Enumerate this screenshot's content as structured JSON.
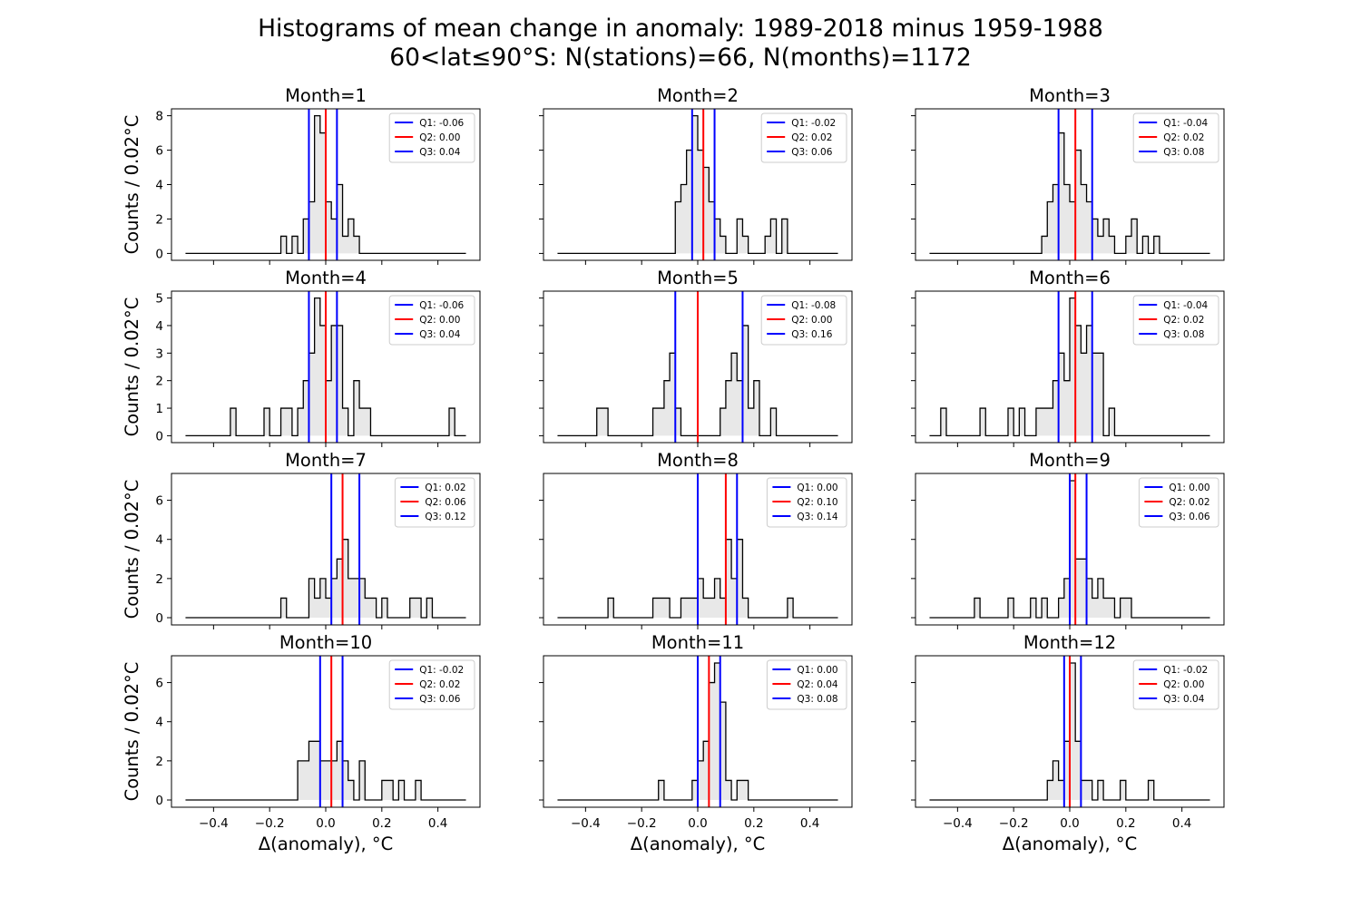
{
  "title": "Histograms of mean change in anomaly: 1989-2018 minus 1959-1988",
  "subtitle": "60<lat≤90°S: N(stations)=66, N(months)=1172",
  "colors": {
    "q_outer": "#0000ff",
    "q_median": "#ff0000",
    "hist_fill": "#e8e8e8",
    "hist_edge": "#000000"
  },
  "chart_data": [
    {
      "type": "histogram",
      "title": "Month=1",
      "xlim": [
        -0.55,
        0.55
      ],
      "ylim": [
        -0.4,
        8.4
      ],
      "yticks": [
        0,
        2,
        4,
        6,
        8
      ],
      "ylabel": "Counts / 0.02°C",
      "xlabel": "",
      "bin_width": 0.02,
      "x_start": -0.5,
      "bars": [
        [
          -0.16,
          1
        ],
        [
          -0.12,
          1
        ],
        [
          -0.08,
          2
        ],
        [
          -0.06,
          3
        ],
        [
          -0.04,
          8
        ],
        [
          -0.02,
          7
        ],
        [
          0.0,
          3
        ],
        [
          0.02,
          2
        ],
        [
          0.04,
          4
        ],
        [
          0.06,
          1
        ],
        [
          0.08,
          2
        ],
        [
          0.1,
          1
        ]
      ],
      "quartiles": [
        {
          "name": "Q1",
          "value": -0.06,
          "label": "Q1: -0.06"
        },
        {
          "name": "Q2",
          "value": 0.0,
          "label": "Q2: 0.00"
        },
        {
          "name": "Q3",
          "value": 0.04,
          "label": "Q3: 0.04"
        }
      ]
    },
    {
      "type": "histogram",
      "title": "Month=2",
      "xlim": [
        -0.55,
        0.55
      ],
      "ylim": [
        -0.4,
        8.4
      ],
      "yticks": [
        0,
        2,
        4,
        6,
        8
      ],
      "ylabel": "",
      "xlabel": "",
      "bin_width": 0.02,
      "x_start": -0.5,
      "bars": [
        [
          -0.08,
          3
        ],
        [
          -0.06,
          4
        ],
        [
          -0.04,
          6
        ],
        [
          -0.02,
          8
        ],
        [
          0.0,
          6
        ],
        [
          0.02,
          5
        ],
        [
          0.04,
          3
        ],
        [
          0.06,
          2
        ],
        [
          0.08,
          1
        ],
        [
          0.14,
          2
        ],
        [
          0.16,
          1
        ],
        [
          0.24,
          1
        ],
        [
          0.26,
          2
        ],
        [
          0.3,
          2
        ]
      ],
      "quartiles": [
        {
          "name": "Q1",
          "value": -0.02,
          "label": "Q1: -0.02"
        },
        {
          "name": "Q2",
          "value": 0.02,
          "label": "Q2: 0.02"
        },
        {
          "name": "Q3",
          "value": 0.06,
          "label": "Q3: 0.06"
        }
      ]
    },
    {
      "type": "histogram",
      "title": "Month=3",
      "xlim": [
        -0.55,
        0.55
      ],
      "ylim": [
        -0.4,
        8.4
      ],
      "yticks": [
        0,
        2,
        4,
        6,
        8
      ],
      "ylabel": "",
      "xlabel": "",
      "bin_width": 0.02,
      "x_start": -0.5,
      "bars": [
        [
          -0.1,
          1
        ],
        [
          -0.08,
          3
        ],
        [
          -0.06,
          4
        ],
        [
          -0.04,
          7
        ],
        [
          -0.02,
          4
        ],
        [
          0.0,
          3
        ],
        [
          0.02,
          6
        ],
        [
          0.04,
          4
        ],
        [
          0.06,
          3
        ],
        [
          0.08,
          2
        ],
        [
          0.1,
          1
        ],
        [
          0.12,
          2
        ],
        [
          0.14,
          1
        ],
        [
          0.2,
          1
        ],
        [
          0.22,
          2
        ],
        [
          0.26,
          1
        ],
        [
          0.3,
          1
        ]
      ],
      "quartiles": [
        {
          "name": "Q1",
          "value": -0.04,
          "label": "Q1: -0.04"
        },
        {
          "name": "Q2",
          "value": 0.02,
          "label": "Q2: 0.02"
        },
        {
          "name": "Q3",
          "value": 0.08,
          "label": "Q3: 0.08"
        }
      ]
    },
    {
      "type": "histogram",
      "title": "Month=4",
      "xlim": [
        -0.55,
        0.55
      ],
      "ylim": [
        -0.25,
        5.25
      ],
      "yticks": [
        0,
        1,
        2,
        3,
        4,
        5
      ],
      "ylabel": "Counts / 0.02°C",
      "xlabel": "",
      "bin_width": 0.02,
      "x_start": -0.5,
      "bars": [
        [
          -0.34,
          1
        ],
        [
          -0.22,
          1
        ],
        [
          -0.16,
          1
        ],
        [
          -0.14,
          1
        ],
        [
          -0.1,
          1
        ],
        [
          -0.08,
          2
        ],
        [
          -0.06,
          3
        ],
        [
          -0.04,
          5
        ],
        [
          -0.02,
          4
        ],
        [
          0.0,
          2
        ],
        [
          0.02,
          4
        ],
        [
          0.04,
          4
        ],
        [
          0.06,
          1
        ],
        [
          0.1,
          2
        ],
        [
          0.12,
          1
        ],
        [
          0.14,
          1
        ],
        [
          0.44,
          1
        ]
      ],
      "quartiles": [
        {
          "name": "Q1",
          "value": -0.06,
          "label": "Q1: -0.06"
        },
        {
          "name": "Q2",
          "value": 0.0,
          "label": "Q2: 0.00"
        },
        {
          "name": "Q3",
          "value": 0.04,
          "label": "Q3: 0.04"
        }
      ]
    },
    {
      "type": "histogram",
      "title": "Month=5",
      "xlim": [
        -0.55,
        0.55
      ],
      "ylim": [
        -0.25,
        5.25
      ],
      "yticks": [
        0,
        1,
        2,
        3,
        4,
        5
      ],
      "ylabel": "",
      "xlabel": "",
      "bin_width": 0.02,
      "x_start": -0.5,
      "bars": [
        [
          -0.36,
          1
        ],
        [
          -0.34,
          1
        ],
        [
          -0.16,
          1
        ],
        [
          -0.14,
          1
        ],
        [
          -0.12,
          2
        ],
        [
          -0.1,
          3
        ],
        [
          -0.08,
          1
        ],
        [
          0.08,
          1
        ],
        [
          0.1,
          2
        ],
        [
          0.12,
          3
        ],
        [
          0.14,
          2
        ],
        [
          0.16,
          4
        ],
        [
          0.18,
          1
        ],
        [
          0.2,
          2
        ],
        [
          0.26,
          1
        ]
      ],
      "quartiles": [
        {
          "name": "Q1",
          "value": -0.08,
          "label": "Q1: -0.08"
        },
        {
          "name": "Q2",
          "value": 0.0,
          "label": "Q2: 0.00"
        },
        {
          "name": "Q3",
          "value": 0.16,
          "label": "Q3: 0.16"
        }
      ]
    },
    {
      "type": "histogram",
      "title": "Month=6",
      "xlim": [
        -0.55,
        0.55
      ],
      "ylim": [
        -0.25,
        5.25
      ],
      "yticks": [
        0,
        1,
        2,
        3,
        4,
        5
      ],
      "ylabel": "",
      "xlabel": "",
      "bin_width": 0.02,
      "x_start": -0.5,
      "bars": [
        [
          -0.46,
          1
        ],
        [
          -0.32,
          1
        ],
        [
          -0.22,
          1
        ],
        [
          -0.18,
          1
        ],
        [
          -0.12,
          1
        ],
        [
          -0.1,
          1
        ],
        [
          -0.08,
          1
        ],
        [
          -0.06,
          2
        ],
        [
          -0.04,
          3
        ],
        [
          -0.02,
          2
        ],
        [
          0.0,
          5
        ],
        [
          0.02,
          4
        ],
        [
          0.04,
          3
        ],
        [
          0.06,
          4
        ],
        [
          0.08,
          3
        ],
        [
          0.1,
          3
        ],
        [
          0.14,
          1
        ]
      ],
      "quartiles": [
        {
          "name": "Q1",
          "value": -0.04,
          "label": "Q1: -0.04"
        },
        {
          "name": "Q2",
          "value": 0.02,
          "label": "Q2: 0.02"
        },
        {
          "name": "Q3",
          "value": 0.08,
          "label": "Q3: 0.08"
        }
      ]
    },
    {
      "type": "histogram",
      "title": "Month=7",
      "xlim": [
        -0.55,
        0.55
      ],
      "ylim": [
        -0.37,
        7.37
      ],
      "yticks": [
        0,
        2,
        4,
        6
      ],
      "ylabel": "Counts / 0.02°C",
      "xlabel": "",
      "bin_width": 0.02,
      "x_start": -0.5,
      "bars": [
        [
          -0.16,
          1
        ],
        [
          -0.06,
          2
        ],
        [
          -0.04,
          1
        ],
        [
          -0.02,
          2
        ],
        [
          0.0,
          1
        ],
        [
          0.02,
          2
        ],
        [
          0.04,
          3
        ],
        [
          0.06,
          4
        ],
        [
          0.08,
          2
        ],
        [
          0.1,
          2
        ],
        [
          0.12,
          2
        ],
        [
          0.14,
          1
        ],
        [
          0.16,
          1
        ],
        [
          0.2,
          1
        ],
        [
          0.3,
          1
        ],
        [
          0.32,
          1
        ],
        [
          0.36,
          1
        ]
      ],
      "quartiles": [
        {
          "name": "Q1",
          "value": 0.02,
          "label": "Q1: 0.02"
        },
        {
          "name": "Q2",
          "value": 0.06,
          "label": "Q2: 0.06"
        },
        {
          "name": "Q3",
          "value": 0.12,
          "label": "Q3: 0.12"
        }
      ]
    },
    {
      "type": "histogram",
      "title": "Month=8",
      "xlim": [
        -0.55,
        0.55
      ],
      "ylim": [
        -0.37,
        7.37
      ],
      "yticks": [
        0,
        2,
        4,
        6
      ],
      "ylabel": "",
      "xlabel": "",
      "bin_width": 0.02,
      "x_start": -0.5,
      "bars": [
        [
          -0.32,
          1
        ],
        [
          -0.16,
          1
        ],
        [
          -0.14,
          1
        ],
        [
          -0.12,
          1
        ],
        [
          -0.06,
          1
        ],
        [
          -0.04,
          1
        ],
        [
          -0.02,
          1
        ],
        [
          0.0,
          2
        ],
        [
          0.02,
          1
        ],
        [
          0.04,
          1
        ],
        [
          0.06,
          2
        ],
        [
          0.08,
          1
        ],
        [
          0.1,
          4
        ],
        [
          0.12,
          2
        ],
        [
          0.14,
          4
        ],
        [
          0.16,
          1
        ],
        [
          0.32,
          1
        ]
      ],
      "quartiles": [
        {
          "name": "Q1",
          "value": 0.0,
          "label": "Q1: 0.00"
        },
        {
          "name": "Q2",
          "value": 0.1,
          "label": "Q2: 0.10"
        },
        {
          "name": "Q3",
          "value": 0.14,
          "label": "Q3: 0.14"
        }
      ]
    },
    {
      "type": "histogram",
      "title": "Month=9",
      "xlim": [
        -0.55,
        0.55
      ],
      "ylim": [
        -0.37,
        7.37
      ],
      "yticks": [
        0,
        2,
        4,
        6
      ],
      "ylabel": "",
      "xlabel": "",
      "bin_width": 0.02,
      "x_start": -0.5,
      "bars": [
        [
          -0.34,
          1
        ],
        [
          -0.22,
          1
        ],
        [
          -0.14,
          1
        ],
        [
          -0.1,
          1
        ],
        [
          -0.04,
          1
        ],
        [
          -0.02,
          2
        ],
        [
          0.0,
          7
        ],
        [
          0.02,
          3
        ],
        [
          0.04,
          3
        ],
        [
          0.06,
          2
        ],
        [
          0.08,
          1
        ],
        [
          0.1,
          2
        ],
        [
          0.12,
          1
        ],
        [
          0.14,
          1
        ],
        [
          0.18,
          1
        ],
        [
          0.2,
          1
        ]
      ],
      "quartiles": [
        {
          "name": "Q1",
          "value": 0.0,
          "label": "Q1: 0.00"
        },
        {
          "name": "Q2",
          "value": 0.02,
          "label": "Q2: 0.02"
        },
        {
          "name": "Q3",
          "value": 0.06,
          "label": "Q3: 0.06"
        }
      ]
    },
    {
      "type": "histogram",
      "title": "Month=10",
      "xlim": [
        -0.55,
        0.55
      ],
      "ylim": [
        -0.37,
        7.37
      ],
      "yticks": [
        0,
        2,
        4,
        6
      ],
      "ylabel": "Counts / 0.02°C",
      "xlabel": "Δ(anomaly), °C",
      "bin_width": 0.02,
      "x_start": -0.5,
      "bars": [
        [
          -0.1,
          2
        ],
        [
          -0.08,
          2
        ],
        [
          -0.06,
          3
        ],
        [
          -0.04,
          3
        ],
        [
          -0.02,
          2
        ],
        [
          0.0,
          2
        ],
        [
          0.02,
          2
        ],
        [
          0.04,
          3
        ],
        [
          0.06,
          2
        ],
        [
          0.08,
          1
        ],
        [
          0.12,
          2
        ],
        [
          0.2,
          1
        ],
        [
          0.22,
          1
        ],
        [
          0.26,
          1
        ],
        [
          0.32,
          1
        ]
      ],
      "quartiles": [
        {
          "name": "Q1",
          "value": -0.02,
          "label": "Q1: -0.02"
        },
        {
          "name": "Q2",
          "value": 0.02,
          "label": "Q2: 0.02"
        },
        {
          "name": "Q3",
          "value": 0.06,
          "label": "Q3: 0.06"
        }
      ]
    },
    {
      "type": "histogram",
      "title": "Month=11",
      "xlim": [
        -0.55,
        0.55
      ],
      "ylim": [
        -0.37,
        7.37
      ],
      "yticks": [],
      "ylabel": "",
      "xlabel": "Δ(anomaly), °C",
      "bin_width": 0.02,
      "x_start": -0.5,
      "bars": [
        [
          -0.14,
          1
        ],
        [
          -0.02,
          1
        ],
        [
          0.0,
          2
        ],
        [
          0.02,
          3
        ],
        [
          0.04,
          6
        ],
        [
          0.06,
          7
        ],
        [
          0.08,
          5
        ],
        [
          0.1,
          1
        ],
        [
          0.14,
          1
        ],
        [
          0.16,
          1
        ]
      ],
      "quartiles": [
        {
          "name": "Q1",
          "value": 0.0,
          "label": "Q1: 0.00"
        },
        {
          "name": "Q2",
          "value": 0.04,
          "label": "Q2: 0.04"
        },
        {
          "name": "Q3",
          "value": 0.08,
          "label": "Q3: 0.08"
        }
      ]
    },
    {
      "type": "histogram",
      "title": "Month=12",
      "xlim": [
        -0.55,
        0.55
      ],
      "ylim": [
        -0.37,
        7.37
      ],
      "yticks": [],
      "ylabel": "",
      "xlabel": "Δ(anomaly), °C",
      "bin_width": 0.02,
      "x_start": -0.5,
      "bars": [
        [
          -0.08,
          1
        ],
        [
          -0.06,
          2
        ],
        [
          -0.04,
          1
        ],
        [
          -0.02,
          3
        ],
        [
          0.0,
          7
        ],
        [
          0.02,
          3
        ],
        [
          0.04,
          1
        ],
        [
          0.06,
          1
        ],
        [
          0.1,
          1
        ],
        [
          0.18,
          1
        ],
        [
          0.28,
          1
        ]
      ],
      "quartiles": [
        {
          "name": "Q1",
          "value": -0.02,
          "label": "Q1: -0.02"
        },
        {
          "name": "Q2",
          "value": 0.0,
          "label": "Q2: 0.00"
        },
        {
          "name": "Q3",
          "value": 0.04,
          "label": "Q3: 0.04"
        }
      ]
    }
  ],
  "xticks": [
    -0.4,
    -0.2,
    0.0,
    0.2,
    0.4
  ],
  "xtick_labels": [
    "−0.4",
    "−0.2",
    "0.0",
    "0.2",
    "0.4"
  ]
}
